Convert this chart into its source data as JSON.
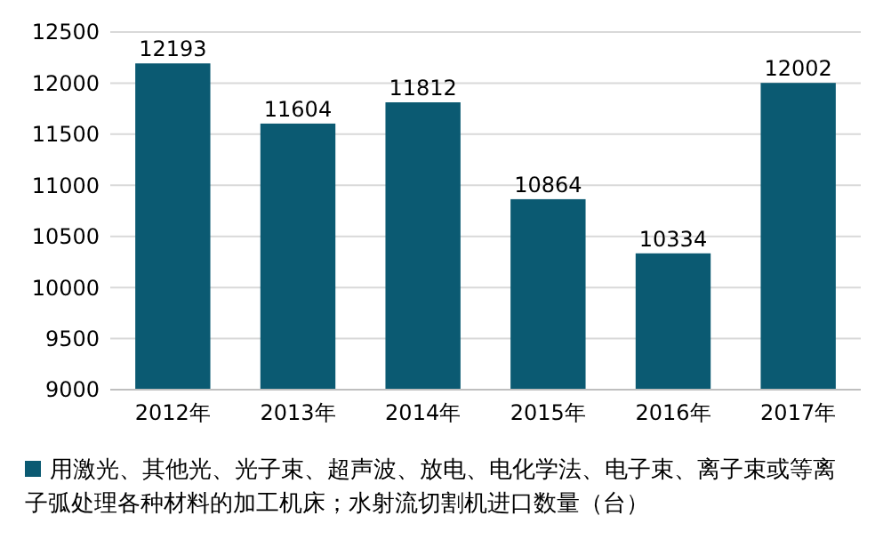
{
  "chart_data": {
    "type": "bar",
    "categories": [
      "2012年",
      "2013年",
      "2014年",
      "2015年",
      "2016年",
      "2017年"
    ],
    "series": [
      {
        "name": "用激光、其他光、光子束、超声波、放电、电化学法、电子束、离子束或等离子弧处理各种材料的加工机床；水射流切割机进口数量（台）",
        "color": "#0b5a72",
        "values": [
          12193,
          11604,
          11812,
          10864,
          10334,
          12002
        ]
      }
    ],
    "ylim": [
      9000,
      12500
    ],
    "yticks": [
      9000,
      9500,
      10000,
      10500,
      11000,
      11500,
      12000,
      12500
    ],
    "grid": "y",
    "data_labels": true,
    "legend": "bottom"
  }
}
